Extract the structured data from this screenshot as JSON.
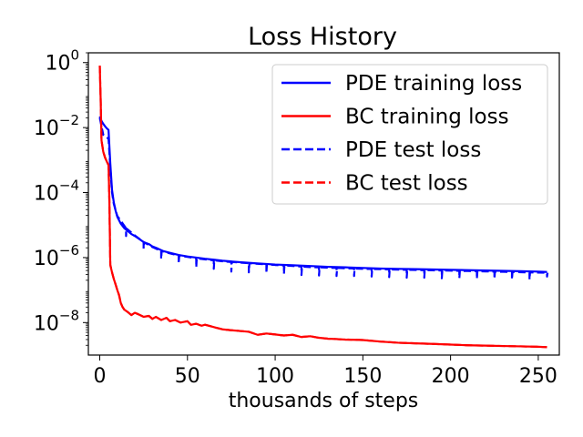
{
  "chart_data": {
    "type": "line",
    "title": "Loss History",
    "xlabel": "thousands of steps",
    "ylabel": "",
    "yscale": "log",
    "xlim": [
      -6.5,
      262
    ],
    "ylim": [
      1e-09,
      2.0
    ],
    "xticks": [
      0,
      50,
      100,
      150,
      200,
      250
    ],
    "xtick_labels": [
      "0",
      "50",
      "100",
      "150",
      "200",
      "250"
    ],
    "yticks": [
      1,
      0.01,
      0.0001,
      1e-06,
      1e-08
    ],
    "ytick_labels": [
      {
        "base": "10",
        "exp": "0"
      },
      {
        "base": "10",
        "exp": "−2"
      },
      {
        "base": "10",
        "exp": "−4"
      },
      {
        "base": "10",
        "exp": "−6"
      },
      {
        "base": "10",
        "exp": "−8"
      }
    ],
    "grid": false,
    "legend_position": "top-right",
    "series": [
      {
        "name": "PDE training loss",
        "color": "#0000ff",
        "style": "solid",
        "x": [
          0,
          1,
          2,
          3,
          4,
          5,
          6,
          7,
          8,
          9,
          10,
          12,
          14,
          16,
          18,
          20,
          22,
          25,
          28,
          30,
          33,
          36,
          40,
          45,
          50,
          55,
          60,
          65,
          70,
          80,
          90,
          100,
          110,
          120,
          130,
          140,
          150,
          160,
          170,
          180,
          190,
          200,
          210,
          220,
          230,
          240,
          250,
          255
        ],
        "y": [
          0.022,
          0.016,
          0.013,
          0.011,
          0.0095,
          0.0085,
          0.0008,
          0.00012,
          5e-05,
          2.8e-05,
          1.8e-05,
          1.1e-05,
          8e-06,
          6.5e-06,
          5.3e-06,
          4.6e-06,
          3.9e-06,
          3e-06,
          2.6e-06,
          2.2e-06,
          1.9e-06,
          1.6e-06,
          1.4e-06,
          1.2e-06,
          1.08e-06,
          1e-06,
          9.2e-07,
          8.6e-07,
          8e-07,
          7.2e-07,
          6.6e-07,
          6.1e-07,
          5.8e-07,
          5.5e-07,
          5.2e-07,
          5e-07,
          4.8e-07,
          4.6e-07,
          4.5e-07,
          4.4e-07,
          4.3e-07,
          4.2e-07,
          4.1e-07,
          4e-07,
          3.9e-07,
          3.8e-07,
          3.7e-07,
          3.6e-07
        ]
      },
      {
        "name": "BC training loss",
        "color": "#ff0000",
        "style": "solid",
        "x": [
          0,
          0.5,
          1,
          2,
          3,
          4,
          5,
          5.5,
          6,
          7,
          8,
          9,
          10,
          11,
          12,
          13,
          14,
          16,
          18,
          20,
          22,
          25,
          28,
          30,
          32,
          35,
          38,
          40,
          43,
          46,
          50,
          52,
          55,
          58,
          60,
          63,
          66,
          70,
          75,
          80,
          85,
          90,
          95,
          100,
          105,
          110,
          115,
          120,
          125,
          130,
          135,
          140,
          150,
          160,
          170,
          180,
          190,
          200,
          210,
          220,
          230,
          240,
          250,
          255
        ],
        "y": [
          0.8,
          0.08,
          0.004,
          0.0018,
          0.0012,
          0.0009,
          0.0007,
          5e-05,
          6e-07,
          3.5e-07,
          2.2e-07,
          1.5e-07,
          1e-07,
          7e-08,
          4e-08,
          3e-08,
          2.5e-08,
          2.1e-08,
          1.7e-08,
          2e-08,
          1.8e-08,
          1.5e-08,
          1.6e-08,
          1.3e-08,
          1.5e-08,
          1.2e-08,
          1.4e-08,
          1.1e-08,
          1.2e-08,
          1e-08,
          1.1e-08,
          8.5e-09,
          9.2e-09,
          8e-09,
          8.6e-09,
          7.8e-09,
          7e-09,
          6.2e-09,
          5.8e-09,
          5.5e-09,
          5.2e-09,
          4.2e-09,
          4.6e-09,
          4.3e-09,
          4e-09,
          4.2e-09,
          3.6e-09,
          3.8e-09,
          3.4e-09,
          3.2e-09,
          3.1e-09,
          3e-09,
          2.9e-09,
          2.6e-09,
          2.4e-09,
          2.3e-09,
          2.2e-09,
          2.1e-09,
          2e-09,
          1.95e-09,
          1.9e-09,
          1.85e-09,
          1.8e-09,
          1.75e-09
        ]
      },
      {
        "name": "PDE test loss",
        "color": "#0000ff",
        "style": "dashed",
        "x": [
          0,
          2,
          4,
          5,
          6,
          7,
          8,
          10,
          15,
          20,
          25,
          30,
          35,
          40,
          45,
          50,
          55,
          60,
          65,
          70,
          75,
          80,
          85,
          90,
          95,
          100,
          105,
          110,
          115,
          120,
          125,
          130,
          135,
          140,
          145,
          150,
          155,
          160,
          165,
          170,
          175,
          180,
          185,
          190,
          195,
          200,
          205,
          210,
          215,
          220,
          225,
          230,
          235,
          240,
          245,
          250,
          255
        ],
        "y": [
          0.02,
          0.006,
          0.005,
          0.0045,
          0.0006,
          0.0001,
          4.5e-05,
          1.9e-05,
          8e-06,
          4.8e-06,
          3e-06,
          2.1e-06,
          1.6e-06,
          1.35e-06,
          1.15e-06,
          1.05e-06,
          9.5e-07,
          8.8e-07,
          8.2e-07,
          7.7e-07,
          7.3e-07,
          7e-07,
          6.7e-07,
          6.4e-07,
          6.2e-07,
          5.9e-07,
          5.7e-07,
          5.5e-07,
          5.3e-07,
          5.1e-07,
          5e-07,
          4.9e-07,
          4.8e-07,
          4.7e-07,
          4.6e-07,
          4.5e-07,
          4.45e-07,
          4.4e-07,
          4.3e-07,
          4.25e-07,
          4.2e-07,
          4.15e-07,
          4.1e-07,
          4.05e-07,
          4e-07,
          3.95e-07,
          3.9e-07,
          3.85e-07,
          3.8e-07,
          3.75e-07,
          3.7e-07,
          3.65e-07,
          3.6e-07,
          3.55e-07,
          3.5e-07,
          3.45e-07,
          3.4e-07
        ],
        "dips": [
          {
            "x": 15,
            "y": 4.6e-06
          },
          {
            "x": 25,
            "y": 1.9e-06
          },
          {
            "x": 35,
            "y": 9e-07
          },
          {
            "x": 45,
            "y": 6.5e-07
          },
          {
            "x": 55,
            "y": 5e-07
          },
          {
            "x": 65,
            "y": 4.5e-07
          },
          {
            "x": 75,
            "y": 3.7e-07
          },
          {
            "x": 85,
            "y": 3.5e-07
          },
          {
            "x": 95,
            "y": 3.3e-07
          },
          {
            "x": 105,
            "y": 3.1e-07
          },
          {
            "x": 115,
            "y": 2.9e-07
          },
          {
            "x": 125,
            "y": 2.8e-07
          },
          {
            "x": 135,
            "y": 2.7e-07
          },
          {
            "x": 145,
            "y": 2.7e-07
          },
          {
            "x": 155,
            "y": 2.6e-07
          },
          {
            "x": 165,
            "y": 2.5e-07
          },
          {
            "x": 175,
            "y": 2.4e-07
          },
          {
            "x": 185,
            "y": 2.4e-07
          },
          {
            "x": 195,
            "y": 2.3e-07
          },
          {
            "x": 205,
            "y": 2.3e-07
          },
          {
            "x": 215,
            "y": 2.2e-07
          },
          {
            "x": 225,
            "y": 2.2e-07
          },
          {
            "x": 235,
            "y": 2.1e-07
          },
          {
            "x": 245,
            "y": 2.1e-07
          },
          {
            "x": 255,
            "y": 2.6e-07
          }
        ]
      },
      {
        "name": "BC test loss",
        "color": "#ff0000",
        "style": "dashed",
        "x": [
          0,
          0.5,
          1,
          2,
          3,
          4,
          5,
          5.5,
          6,
          7,
          8,
          9,
          10,
          11,
          12,
          13,
          14,
          16,
          18,
          20,
          22,
          25,
          28,
          30,
          32,
          35,
          38,
          40,
          43,
          46,
          50,
          52,
          55,
          58,
          60,
          63,
          66,
          70,
          75,
          80,
          85,
          90,
          95,
          100,
          105,
          110,
          115,
          120,
          125,
          130,
          135,
          140,
          150,
          160,
          170,
          180,
          190,
          200,
          210,
          220,
          230,
          240,
          250,
          255
        ],
        "y": [
          0.8,
          0.08,
          0.004,
          0.0018,
          0.0012,
          0.0009,
          0.0007,
          5e-05,
          6e-07,
          3.5e-07,
          2.2e-07,
          1.5e-07,
          1e-07,
          7e-08,
          4e-08,
          3e-08,
          2.5e-08,
          2.1e-08,
          1.7e-08,
          2e-08,
          1.8e-08,
          1.5e-08,
          1.6e-08,
          1.3e-08,
          1.5e-08,
          1.2e-08,
          1.4e-08,
          1.1e-08,
          1.2e-08,
          1e-08,
          1.1e-08,
          8.5e-09,
          9.2e-09,
          8e-09,
          8.6e-09,
          7.8e-09,
          7e-09,
          6.2e-09,
          5.8e-09,
          5.5e-09,
          5.2e-09,
          4.2e-09,
          4.6e-09,
          4.3e-09,
          4e-09,
          4.2e-09,
          3.6e-09,
          3.8e-09,
          3.4e-09,
          3.2e-09,
          3.1e-09,
          3e-09,
          2.9e-09,
          2.6e-09,
          2.4e-09,
          2.3e-09,
          2.2e-09,
          2.1e-09,
          2e-09,
          1.95e-09,
          1.9e-09,
          1.85e-09,
          1.8e-09,
          1.75e-09
        ]
      }
    ]
  }
}
